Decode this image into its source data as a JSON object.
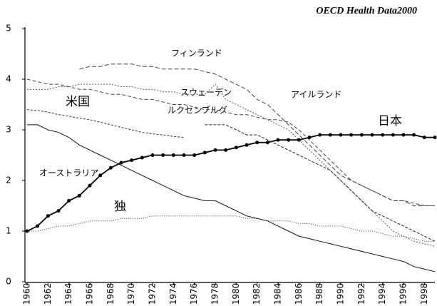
{
  "chart_data": {
    "type": "line",
    "title": "OECD Health Data2000",
    "x": [
      1960,
      1961,
      1962,
      1963,
      1964,
      1965,
      1966,
      1967,
      1968,
      1969,
      1970,
      1971,
      1972,
      1973,
      1974,
      1975,
      1976,
      1977,
      1978,
      1979,
      1980,
      1981,
      1982,
      1983,
      1984,
      1985,
      1986,
      1987,
      1988,
      1989,
      1990,
      1991,
      1992,
      1993,
      1994,
      1995,
      1996,
      1997,
      1998,
      1999
    ],
    "xlim": [
      1960,
      1999
    ],
    "xticks": [
      1960,
      1962,
      1964,
      1966,
      1968,
      1970,
      1972,
      1974,
      1976,
      1978,
      1980,
      1982,
      1984,
      1986,
      1988,
      1990,
      1992,
      1994,
      1996,
      1998
    ],
    "ylim": [
      0,
      5
    ],
    "yticks": [
      0,
      1,
      2,
      3,
      4,
      5
    ],
    "series": [
      {
        "name": "日本",
        "color": "#000000",
        "values": [
          1.0,
          1.1,
          1.3,
          1.4,
          1.6,
          1.7,
          1.9,
          2.1,
          2.25,
          2.35,
          2.4,
          2.45,
          2.5,
          2.5,
          2.5,
          2.5,
          2.5,
          2.55,
          2.6,
          2.6,
          2.65,
          2.7,
          2.75,
          2.75,
          2.8,
          2.8,
          2.8,
          2.85,
          2.9,
          2.9,
          2.9,
          2.9,
          2.9,
          2.9,
          2.9,
          2.9,
          2.9,
          2.9,
          2.85,
          2.85
        ]
      },
      {
        "name": "米国",
        "color": "#333333",
        "values": [
          3.4,
          3.38,
          3.35,
          3.3,
          3.27,
          3.23,
          3.2,
          3.15,
          3.1,
          3.05,
          3.0,
          2.95,
          2.92,
          2.9,
          2.87,
          2.85,
          null,
          null,
          null,
          null,
          null,
          null,
          null,
          null,
          null,
          null,
          null,
          null,
          null,
          null,
          null,
          null,
          null,
          null,
          null,
          null,
          null,
          null,
          null,
          null
        ]
      },
      {
        "name": "オーストラリア",
        "color": "#111111",
        "values": [
          3.1,
          3.1,
          3.0,
          2.95,
          2.85,
          2.7,
          2.6,
          2.5,
          2.4,
          2.3,
          2.2,
          2.1,
          2.0,
          1.9,
          1.8,
          1.7,
          1.65,
          1.6,
          1.6,
          1.5,
          1.4,
          1.3,
          1.25,
          1.2,
          1.1,
          1.0,
          0.9,
          0.85,
          0.8,
          0.75,
          0.7,
          0.65,
          0.6,
          0.55,
          0.5,
          0.45,
          0.4,
          0.3,
          0.25,
          0.2
        ]
      },
      {
        "name": "フィンランド",
        "color": "#444444",
        "values": [
          null,
          null,
          null,
          null,
          null,
          4.2,
          4.25,
          4.25,
          4.3,
          4.3,
          4.3,
          4.25,
          4.25,
          4.2,
          4.2,
          4.2,
          4.2,
          4.15,
          4.1,
          4.0,
          3.9,
          3.8,
          3.6,
          3.5,
          3.3,
          3.1,
          2.9,
          2.7,
          2.5,
          2.3,
          2.1,
          2.0,
          1.9,
          1.8,
          1.7,
          1.6,
          1.6,
          1.5,
          1.5,
          1.5
        ]
      },
      {
        "name": "スウェーデン",
        "color": "#555555",
        "values": [
          3.8,
          3.8,
          3.8,
          3.85,
          3.85,
          3.9,
          3.9,
          3.9,
          3.9,
          3.85,
          3.85,
          3.8,
          3.8,
          3.75,
          3.75,
          3.7,
          3.7,
          3.7,
          3.9,
          3.6,
          3.5,
          3.4,
          3.3,
          3.2,
          3.1,
          3.0,
          2.8,
          2.6,
          2.4,
          2.2,
          2.0,
          1.8,
          1.6,
          1.4,
          1.2,
          1.0,
          0.9,
          0.8,
          0.75,
          0.7
        ]
      },
      {
        "name": "ルクセンブルグ",
        "color": "#222222",
        "values": [
          null,
          null,
          null,
          null,
          null,
          null,
          null,
          null,
          null,
          null,
          null,
          null,
          null,
          null,
          null,
          null,
          null,
          3.1,
          3.1,
          3.1,
          3.0,
          2.9,
          2.9,
          2.8,
          2.7,
          2.6,
          2.5,
          2.4,
          2.3,
          2.2,
          2.0,
          1.8,
          1.6,
          1.4,
          1.3,
          1.2,
          1.1,
          1.0,
          0.9,
          0.8
        ]
      },
      {
        "name": "アイルランド",
        "color": "#444444",
        "values": [
          4.0,
          3.95,
          3.9,
          3.9,
          3.85,
          3.8,
          3.8,
          3.75,
          3.7,
          3.7,
          3.65,
          3.6,
          3.6,
          3.55,
          3.5,
          3.5,
          3.45,
          3.4,
          3.4,
          3.35,
          3.3,
          3.3,
          3.25,
          3.2,
          3.2,
          3.15,
          3.0,
          2.8,
          2.6,
          2.4,
          2.2,
          2.0,
          1.9,
          1.8,
          1.7,
          1.6,
          1.6,
          1.55,
          1.5,
          1.5
        ]
      },
      {
        "name": "独",
        "color": "#333333",
        "values": [
          1.0,
          1.0,
          1.05,
          1.1,
          1.1,
          1.15,
          1.2,
          1.2,
          1.2,
          1.25,
          1.25,
          1.25,
          1.3,
          1.3,
          1.3,
          1.3,
          1.3,
          1.3,
          1.3,
          1.3,
          1.3,
          1.25,
          1.25,
          1.2,
          1.2,
          1.2,
          1.15,
          1.15,
          1.1,
          1.1,
          1.1,
          1.05,
          1.0,
          1.0,
          0.95,
          0.9,
          0.9,
          0.85,
          0.8,
          0.8
        ]
      }
    ]
  }
}
